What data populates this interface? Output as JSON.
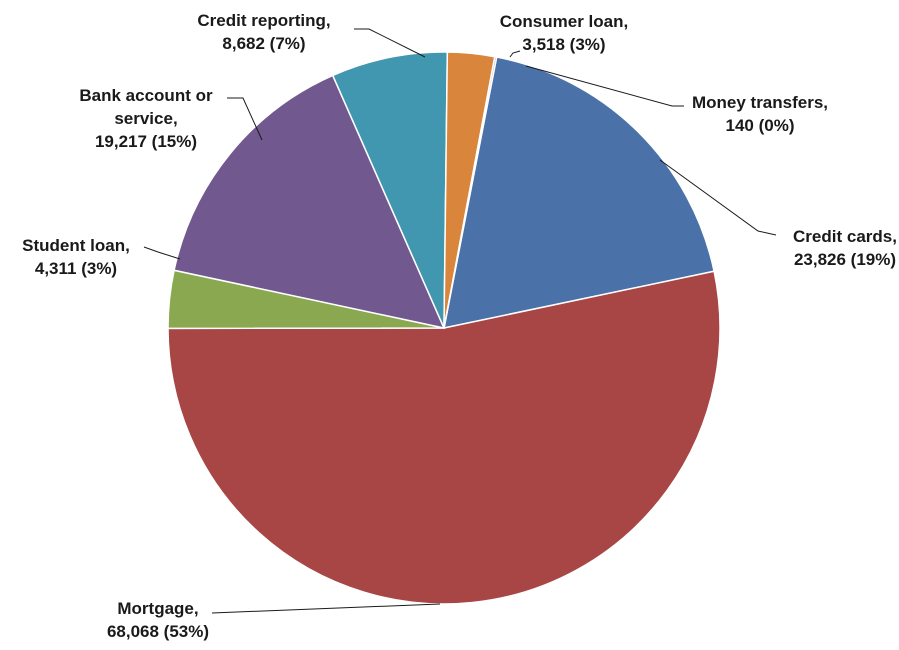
{
  "chart_data": {
    "type": "pie",
    "title": "",
    "series": [
      {
        "values": [
          {
            "category": "Credit cards",
            "value": 23826,
            "percent": "19%",
            "label_lines": [
              "Credit cards,",
              "23,826 (19%)"
            ],
            "color": "#4a72a8"
          },
          {
            "category": "Mortgage",
            "value": 68068,
            "percent": "53%",
            "label_lines": [
              "Mortgage,",
              "68,068 (53%)"
            ],
            "color": "#a84545"
          },
          {
            "category": "Student loan",
            "value": 4311,
            "percent": "3%",
            "label_lines": [
              "Student loan,",
              "4,311 (3%)"
            ],
            "color": "#8aa850"
          },
          {
            "category": "Bank account or service",
            "value": 19217,
            "percent": "15%",
            "label_lines": [
              "Bank account or",
              "service,",
              "19,217 (15%)"
            ],
            "color": "#71588f"
          },
          {
            "category": "Credit reporting",
            "value": 8682,
            "percent": "7%",
            "label_lines": [
              "Credit reporting,",
              "8,682 (7%)"
            ],
            "color": "#4197af"
          },
          {
            "category": "Consumer loan",
            "value": 3518,
            "percent": "3%",
            "label_lines": [
              "Consumer loan,",
              "3,518 (3%)"
            ],
            "color": "#d9853b"
          },
          {
            "category": "Money transfers",
            "value": 140,
            "percent": "0%",
            "label_lines": [
              "Money transfers,",
              "140 (0%)"
            ],
            "color": "#93a9cf"
          }
        ]
      }
    ],
    "start_angle_deg": 11,
    "direction": "clockwise",
    "legend": "none"
  }
}
